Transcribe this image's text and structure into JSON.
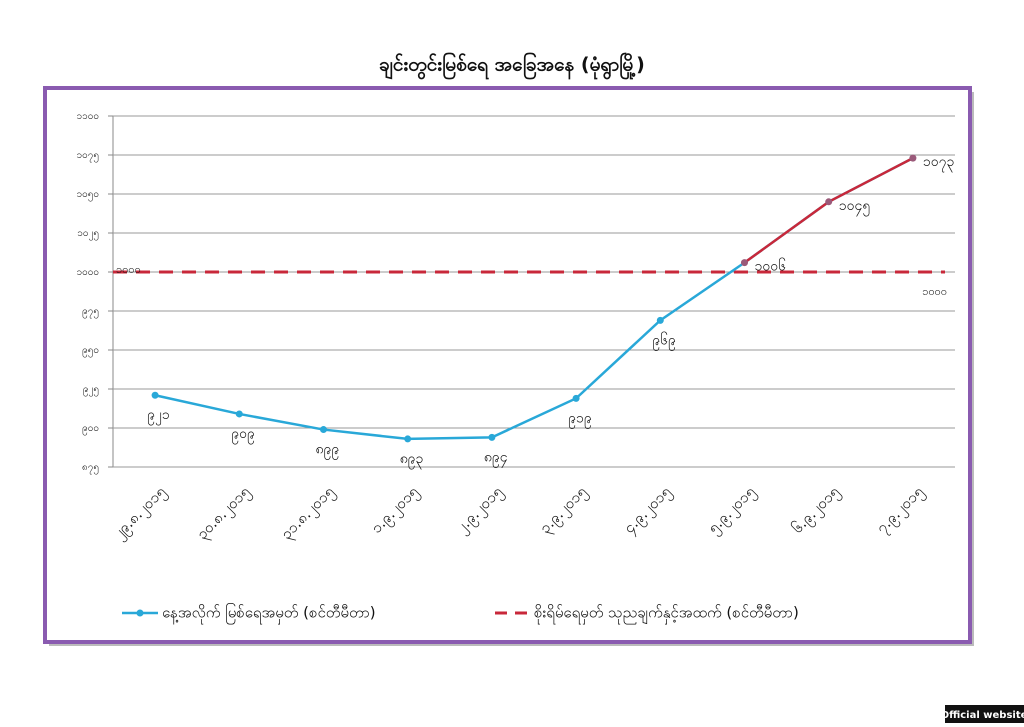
{
  "chart_data": {
    "type": "line",
    "title": "ချင်းတွင်းမြစ်ရေ အခြေအနေ (မုံရွာမြို့)",
    "categories": [
      "၂၉.၈.၂၀၁၅",
      "၃၀.၈.၂၀၁၅",
      "၃၁.၈.၂၀၁၅",
      "၁.၉.၂၀၁၅",
      "၂.၉.၂၀၁၅",
      "၃.၉.၂၀၁၅",
      "၄.၉.၂၀၁၅",
      "၅.၉.၂၀၁၅",
      "၆.၉.၂၀၁၅",
      "၇.၉.၂၀၁၅"
    ],
    "series": [
      {
        "name": "နေ့အလိုက် မြစ်ရေအမှတ် (စင်တီမီတာ)",
        "color": "#29a8d8",
        "above_threshold_color": "#c8283a",
        "values": [
          921,
          909,
          899,
          893,
          894,
          919,
          969,
          1006,
          1045,
          1073
        ],
        "value_labels": [
          "၉၂၁",
          "၉၀၉",
          "၈၉၉",
          "၈၉၃",
          "၈၉၄",
          "၉၁၉",
          "၉၆၉",
          "၁၀၀၆",
          "၁၀၄၅",
          "၁၀၇၃"
        ]
      }
    ],
    "threshold": {
      "name": "စိုးရိမ်ရေမှတ် သုညချက်နှင့်အထက် (စင်တီမီတာ)",
      "value": 1000,
      "color": "#c8283a",
      "value_labels": [
        "၁၀၀၀",
        "၁၀၀၀"
      ]
    },
    "ylim": [
      875,
      1100
    ],
    "yticks": [
      {
        "value": 875,
        "label": "၈၇၅"
      },
      {
        "value": 900,
        "label": "၉၀၀"
      },
      {
        "value": 925,
        "label": "၉၂၅"
      },
      {
        "value": 950,
        "label": "၉၅၀"
      },
      {
        "value": 975,
        "label": "၉၇၅"
      },
      {
        "value": 1000,
        "label": "၁၀၀၀"
      },
      {
        "value": 1025,
        "label": "၁၀၂၅"
      },
      {
        "value": 1050,
        "label": "၁၀၅၀"
      },
      {
        "value": 1075,
        "label": "၁၀၇၅"
      },
      {
        "value": 1100,
        "label": "၁၁၀၀"
      }
    ],
    "grid": true,
    "legend": "bottom"
  },
  "page": {
    "badge": "Official website"
  }
}
